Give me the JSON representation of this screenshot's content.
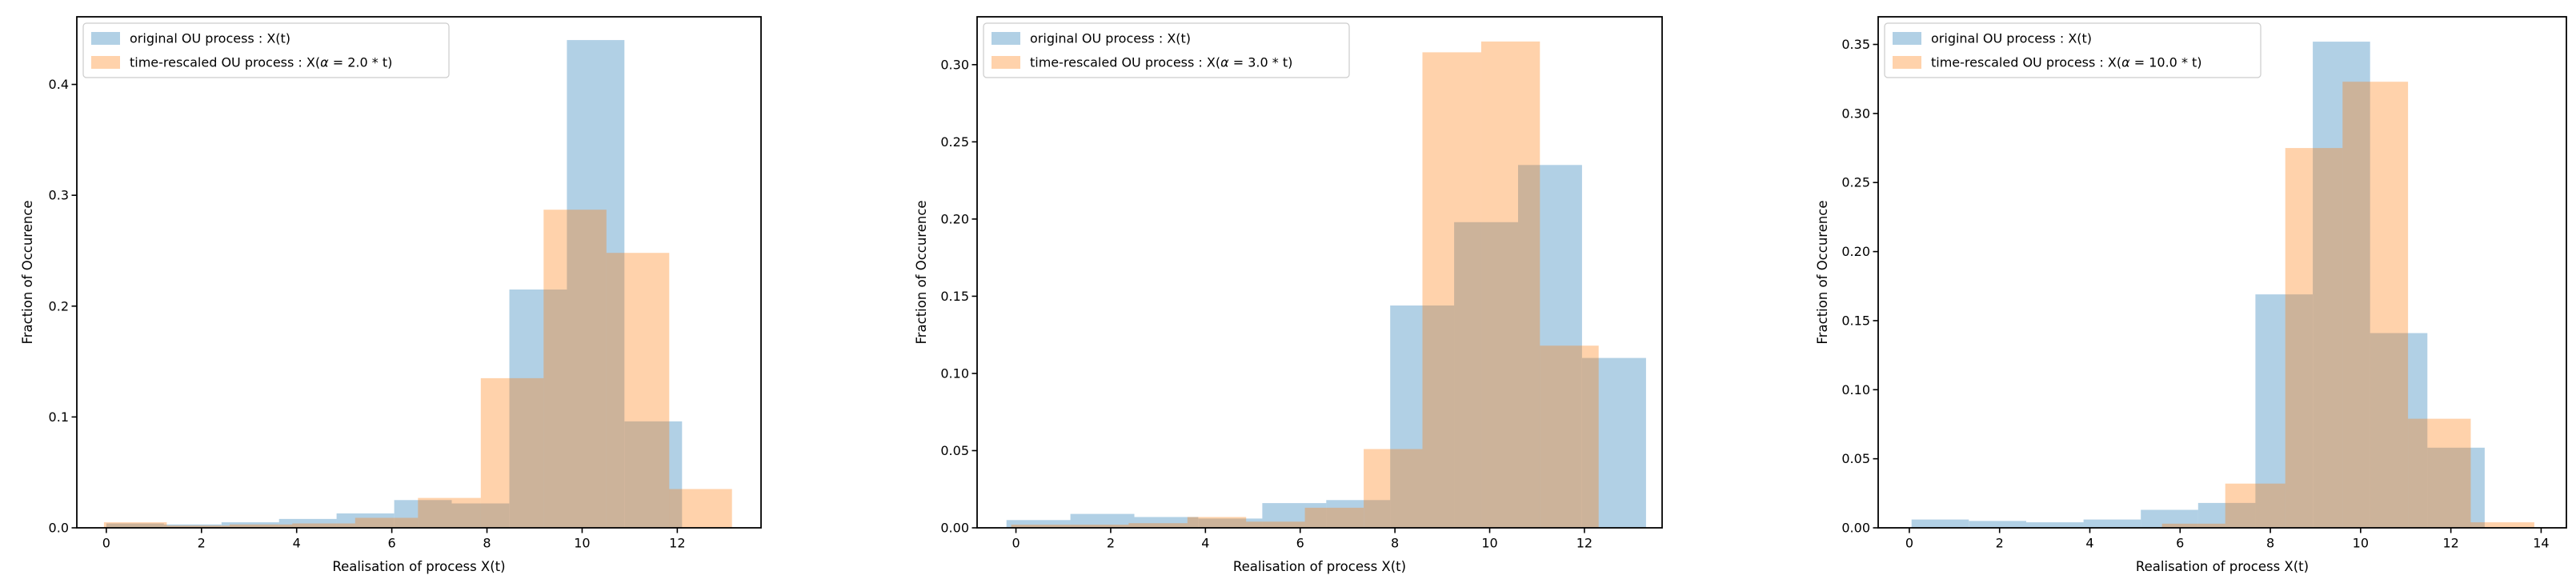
{
  "figure": {
    "background": "#ffffff",
    "n_subplots": 3,
    "description": "Three side-by-side overlaid histograms comparing an original OU process with time-rescaled OU processes"
  },
  "chart_data": [
    {
      "type": "bar",
      "subtype": "overlaid-histogram",
      "title": "",
      "xlabel": "Realisation of process X(t)",
      "ylabel": "Fraction of Occurence",
      "legend_position": "upper left",
      "grid": false,
      "xlim": [
        -0.62,
        13.76
      ],
      "ylim": [
        0,
        0.461
      ],
      "xticks": [
        0,
        2,
        4,
        6,
        8,
        10,
        12
      ],
      "yticks": [
        {
          "v": 0.0,
          "label": "0.0"
        },
        {
          "v": 0.1,
          "label": "0.1"
        },
        {
          "v": 0.2,
          "label": "0.2"
        },
        {
          "v": 0.3,
          "label": "0.3"
        },
        {
          "v": 0.4,
          "label": "0.4"
        }
      ],
      "series": [
        {
          "name": "original OU process : X(t)",
          "color": "#1f77b4",
          "alpha": 0.35,
          "bin_edges": [
            0.0,
            1.21,
            2.42,
            3.63,
            4.84,
            6.05,
            7.26,
            8.47,
            9.68,
            10.89,
            12.1
          ],
          "heights": [
            0.004,
            0.003,
            0.005,
            0.008,
            0.013,
            0.025,
            0.022,
            0.215,
            0.44,
            0.096
          ]
        },
        {
          "name": "time-rescaled OU process : X(α = 2.0 * t)",
          "color": "#ff7f0e",
          "alpha": 0.35,
          "bin_edges": [
            -0.05,
            1.27,
            2.59,
            3.91,
            5.23,
            6.55,
            7.87,
            9.19,
            10.51,
            11.83,
            13.15
          ],
          "heights": [
            0.005,
            0.002,
            0.003,
            0.004,
            0.009,
            0.027,
            0.135,
            0.287,
            0.248,
            0.035
          ]
        }
      ]
    },
    {
      "type": "bar",
      "subtype": "overlaid-histogram",
      "title": "",
      "xlabel": "Realisation of process X(t)",
      "ylabel": "Fraction of Occurence",
      "legend_position": "upper left",
      "grid": false,
      "xlim": [
        -0.82,
        13.64
      ],
      "ylim": [
        0,
        0.331
      ],
      "xticks": [
        0,
        2,
        4,
        6,
        8,
        10,
        12
      ],
      "yticks": [
        {
          "v": 0.0,
          "label": "0.00"
        },
        {
          "v": 0.05,
          "label": "0.05"
        },
        {
          "v": 0.1,
          "label": "0.10"
        },
        {
          "v": 0.15,
          "label": "0.15"
        },
        {
          "v": 0.2,
          "label": "0.20"
        },
        {
          "v": 0.25,
          "label": "0.25"
        },
        {
          "v": 0.3,
          "label": "0.30"
        }
      ],
      "series": [
        {
          "name": "original OU process : X(t)",
          "color": "#1f77b4",
          "alpha": 0.35,
          "bin_edges": [
            -0.2,
            1.15,
            2.5,
            3.85,
            5.2,
            6.55,
            7.9,
            9.25,
            10.6,
            11.95,
            13.3
          ],
          "heights": [
            0.005,
            0.009,
            0.007,
            0.006,
            0.016,
            0.018,
            0.144,
            0.198,
            0.235,
            0.11
          ]
        },
        {
          "name": "time-rescaled OU process : X(α = 3.0 * t)",
          "color": "#ff7f0e",
          "alpha": 0.35,
          "bin_edges": [
            -0.1,
            1.14,
            2.38,
            3.62,
            4.86,
            6.1,
            7.34,
            8.58,
            9.82,
            11.06,
            12.3
          ],
          "heights": [
            0.002,
            0.002,
            0.003,
            0.007,
            0.004,
            0.013,
            0.051,
            0.308,
            0.315,
            0.118
          ]
        }
      ]
    },
    {
      "type": "bar",
      "subtype": "overlaid-histogram",
      "title": "",
      "xlabel": "Realisation of process X(t)",
      "ylabel": "Fraction of Occurence",
      "legend_position": "upper left",
      "grid": false,
      "xlim": [
        -0.69,
        14.56
      ],
      "ylim": [
        0,
        0.37
      ],
      "xticks": [
        0,
        2,
        4,
        6,
        8,
        10,
        12,
        14
      ],
      "yticks": [
        {
          "v": 0.0,
          "label": "0.00"
        },
        {
          "v": 0.05,
          "label": "0.05"
        },
        {
          "v": 0.1,
          "label": "0.10"
        },
        {
          "v": 0.15,
          "label": "0.15"
        },
        {
          "v": 0.2,
          "label": "0.20"
        },
        {
          "v": 0.25,
          "label": "0.25"
        },
        {
          "v": 0.3,
          "label": "0.30"
        },
        {
          "v": 0.35,
          "label": "0.35"
        }
      ],
      "series": [
        {
          "name": "original OU process : X(t)",
          "color": "#1f77b4",
          "alpha": 0.35,
          "bin_edges": [
            0.05,
            1.32,
            2.59,
            3.86,
            5.13,
            6.4,
            7.67,
            8.94,
            10.21,
            11.48,
            12.75
          ],
          "heights": [
            0.006,
            0.005,
            0.004,
            0.006,
            0.013,
            0.018,
            0.169,
            0.352,
            0.141,
            0.058
          ]
        },
        {
          "name": "time-rescaled OU process : X(α = 10.0 * t)",
          "color": "#ff7f0e",
          "alpha": 0.35,
          "bin_edges": [
            5.6,
            7.0,
            8.33,
            9.6,
            11.05,
            12.44,
            13.85
          ],
          "heights": [
            0.003,
            0.032,
            0.275,
            0.323,
            0.079,
            0.004
          ]
        }
      ]
    }
  ]
}
